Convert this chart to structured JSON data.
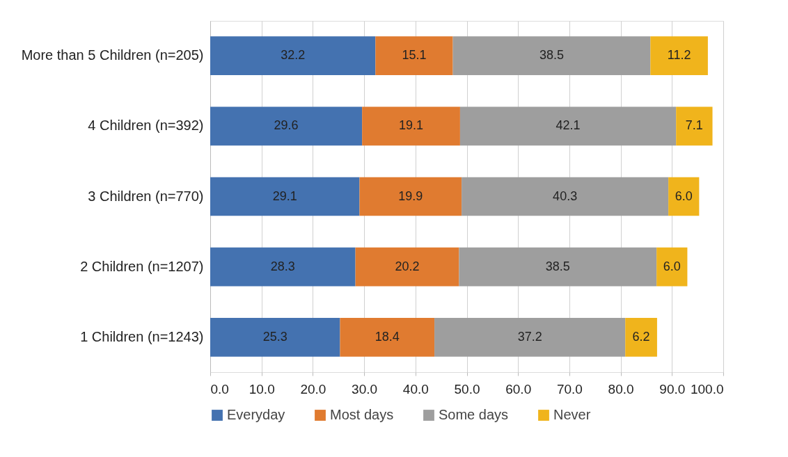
{
  "chart_data": {
    "type": "bar",
    "orientation": "horizontal",
    "stacked": true,
    "categories": [
      "More than 5 Children (n=205)",
      "4 Children (n=392)",
      "3 Children (n=770)",
      "2 Children (n=1207)",
      "1 Children (n=1243)"
    ],
    "series": [
      {
        "name": "Everyday",
        "color": "#4472b0",
        "values": [
          32.2,
          29.6,
          29.1,
          28.3,
          25.3
        ],
        "value_labels": [
          "32.2",
          "29.6",
          "29.1",
          "28.3",
          "25.3"
        ]
      },
      {
        "name": "Most days",
        "color": "#e07b30",
        "values": [
          15.1,
          19.1,
          19.9,
          20.2,
          18.4
        ],
        "value_labels": [
          "15.1",
          "19.1",
          "19.9",
          "20.2",
          "18.4"
        ]
      },
      {
        "name": "Some days",
        "color": "#9e9e9e",
        "values": [
          38.5,
          42.1,
          40.3,
          38.5,
          37.2
        ],
        "value_labels": [
          "38.5",
          "42.1",
          "40.3",
          "38.5",
          "37.2"
        ]
      },
      {
        "name": "Never",
        "color": "#f0b41c",
        "values": [
          11.2,
          7.1,
          6.0,
          6.0,
          6.2
        ],
        "value_labels": [
          "11.2",
          "7.1",
          "6.0",
          "6.0",
          "6.2"
        ]
      }
    ],
    "xlim": [
      0,
      100
    ],
    "xticks": [
      {
        "value": 0,
        "label": "0.0"
      },
      {
        "value": 10,
        "label": "10.0"
      },
      {
        "value": 20,
        "label": "20.0"
      },
      {
        "value": 30,
        "label": "30.0"
      },
      {
        "value": 40,
        "label": "40.0"
      },
      {
        "value": 50,
        "label": "50.0"
      },
      {
        "value": 60,
        "label": "60.0"
      },
      {
        "value": 70,
        "label": "70.0"
      },
      {
        "value": 80,
        "label": "80.0"
      },
      {
        "value": 90,
        "label": "90.0"
      },
      {
        "value": 100,
        "label": "100.0"
      }
    ],
    "grid": "x",
    "legend": "bottom"
  }
}
